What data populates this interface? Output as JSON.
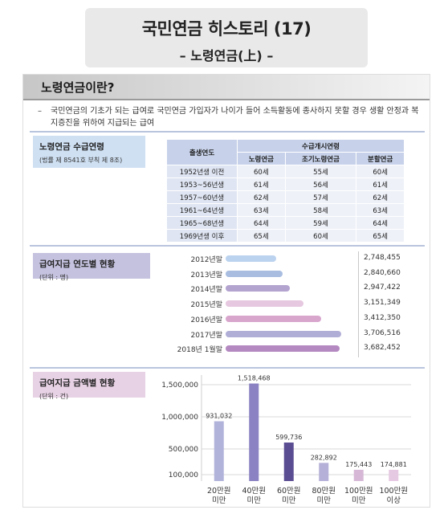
{
  "title": {
    "main": "국민연금 히스토리 (17)",
    "sub": "– 노령연금(上) –"
  },
  "section": {
    "heading": "노령연금이란?",
    "definition_dash": "–",
    "definition": "국민연금의 기초가 되는 급여로 국민연금 가입자가 나이가 들어 소득활동에 종사하지 못할 경우 생활 안정과 복지증진을 위하여 지급되는 급여"
  },
  "age_block": {
    "label": "노령연금 수급연령",
    "sublabel": "(법률 제 8541호 부칙 제 8조)",
    "table": {
      "col_birth": "출생연도",
      "group_header": "수급개시연령",
      "columns": [
        "노령연금",
        "조기노령연금",
        "분할연금"
      ],
      "rows": [
        {
          "birth": "1952년생 이전",
          "values": [
            "60세",
            "55세",
            "60세"
          ]
        },
        {
          "birth": "1953~56년생",
          "values": [
            "61세",
            "56세",
            "61세"
          ]
        },
        {
          "birth": "1957~60년생",
          "values": [
            "62세",
            "57세",
            "62세"
          ]
        },
        {
          "birth": "1961~64년생",
          "values": [
            "63세",
            "58세",
            "63세"
          ]
        },
        {
          "birth": "1965~68년생",
          "values": [
            "64세",
            "59세",
            "64세"
          ]
        },
        {
          "birth": "1969년생 이후",
          "values": [
            "65세",
            "60세",
            "65세"
          ]
        }
      ]
    }
  },
  "year_block": {
    "label": "급여지급 연도별 현황",
    "sublabel": "(단위 : 명)"
  },
  "amount_block": {
    "label": "급여지급 금액별 현황",
    "sublabel": "(단위 : 건)"
  },
  "chart_data": [
    {
      "type": "bar",
      "orientation": "horizontal",
      "categories": [
        "2012년말",
        "2013년말",
        "2014년말",
        "2015년말",
        "2016년말",
        "2017년말",
        "2018년 1월말"
      ],
      "values": [
        2748455,
        2840660,
        2947422,
        3151349,
        3412350,
        3706516,
        3682452
      ],
      "value_labels": [
        "2,748,455",
        "2,840,660",
        "2,947,422",
        "3,151,349",
        "3,412,350",
        "3,706,516",
        "3,682,452"
      ],
      "colors": [
        "#bcd3ef",
        "#a8bde0",
        "#b3a3cf",
        "#e6c8e0",
        "#d8a6cd",
        "#b0aed6",
        "#b489c1"
      ]
    },
    {
      "type": "bar",
      "categories": [
        "20만원\n미만",
        "40만원\n미만",
        "60만원\n미만",
        "80만원\n미만",
        "100만원\n미만",
        "100만원\n이상"
      ],
      "category_lines": [
        [
          "20만원",
          "미만"
        ],
        [
          "40만원",
          "미만"
        ],
        [
          "60만원",
          "미만"
        ],
        [
          "80만원",
          "미만"
        ],
        [
          "100만원",
          "미만"
        ],
        [
          "100만원",
          "이상"
        ]
      ],
      "values": [
        931032,
        1518468,
        599736,
        282892,
        175443,
        174881
      ],
      "value_labels": [
        "931,032",
        "1,518,468",
        "599,736",
        "282,892",
        "175,443",
        "174,881"
      ],
      "y_ticks": [
        100000,
        500000,
        1000000,
        1500000
      ],
      "y_tick_labels": [
        "100,000",
        "500,000",
        "1,000,000",
        "1,500,000"
      ],
      "ylim": [
        0,
        1600000
      ],
      "colors": [
        "#b1b3da",
        "#8a82c2",
        "#5b4d92",
        "#b5b0d8",
        "#d6b8d6",
        "#e5c9e2"
      ]
    }
  ]
}
